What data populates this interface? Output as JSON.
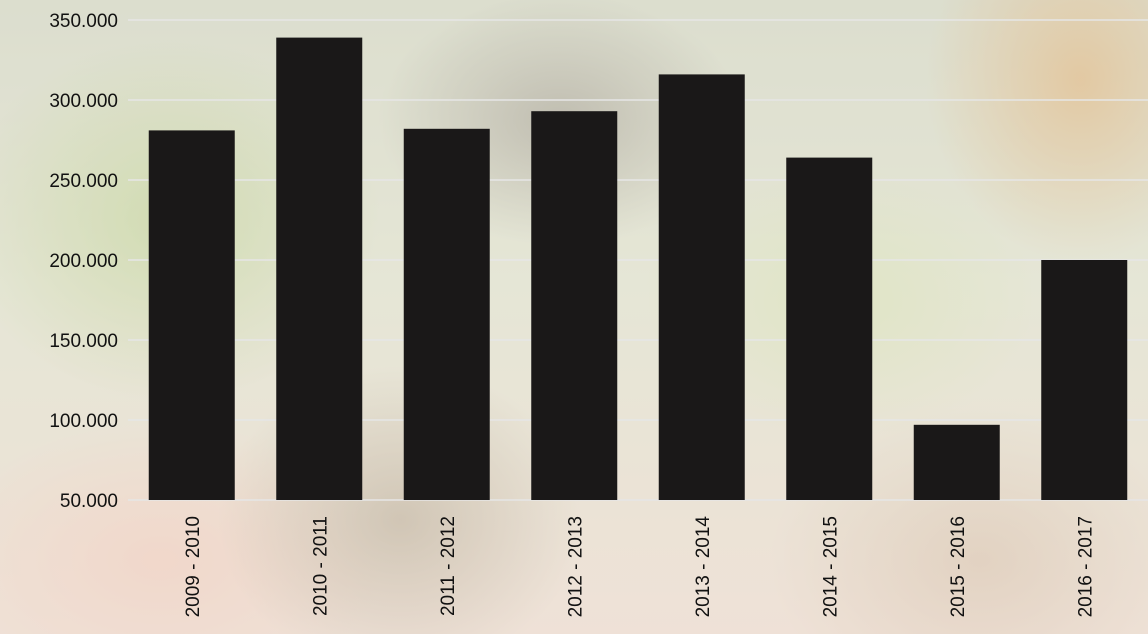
{
  "chart_data": {
    "type": "bar",
    "title": "",
    "xlabel": "",
    "ylabel": "",
    "categories": [
      "2009 - 2010",
      "2010 - 2011",
      "2011 - 2012",
      "2012 - 2013",
      "2013 - 2014",
      "2014 - 2015",
      "2015 - 2016",
      "2016 - 2017"
    ],
    "values": [
      281000,
      339000,
      282000,
      293000,
      316000,
      264000,
      97000,
      200000
    ],
    "ylim": [
      50000,
      350000
    ],
    "yticks": [
      50000,
      100000,
      150000,
      200000,
      250000,
      300000,
      350000
    ],
    "ytick_labels": [
      "50.000",
      "100.000",
      "150.000",
      "200.000",
      "250.000",
      "300.000",
      "350.000"
    ],
    "grid": true,
    "legend": "none",
    "colors": {
      "bar": "#1a1818",
      "grid": "#e6e6e6",
      "text": "#111111"
    }
  }
}
